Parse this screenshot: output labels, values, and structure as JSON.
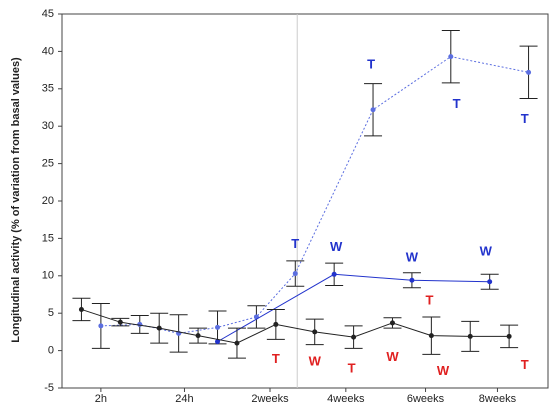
{
  "chart_data": {
    "type": "line",
    "y_label": "Longitudinal activity (% of variation from basal values)",
    "xlim": [
      0,
      25
    ],
    "ylim": [
      -5,
      45
    ],
    "yticks": [
      -5,
      0,
      5,
      10,
      15,
      20,
      25,
      30,
      35,
      40,
      45
    ],
    "xticks": [
      {
        "value": 2,
        "label": "2h"
      },
      {
        "value": 6.3,
        "label": "24h"
      },
      {
        "value": 10.7,
        "label": "2weeks"
      },
      {
        "value": 14.6,
        "label": "4weeks"
      },
      {
        "value": 18.7,
        "label": "6weeks"
      },
      {
        "value": 22.4,
        "label": "8weeks"
      }
    ],
    "vline": 12.1,
    "series": [
      {
        "color": "#5b6ee0",
        "dash": true,
        "x": [
          2,
          4,
          6,
          8,
          10,
          12,
          16,
          20,
          24
        ],
        "values": [
          3.3,
          3.5,
          2.3,
          3.1,
          4.5,
          10.3,
          32.2,
          39.3,
          37.2
        ],
        "errors": [
          3,
          1.2,
          2.5,
          2.2,
          1.5,
          1.7,
          3.5,
          3.5,
          3.5
        ]
      },
      {
        "color": "#2233cc",
        "dash": false,
        "x": [
          8,
          14,
          18,
          22
        ],
        "values": [
          1.2,
          10.2,
          9.4,
          9.2
        ],
        "errors": [
          null,
          1.5,
          1.0,
          1.0
        ]
      },
      {
        "color": "#222222",
        "dash": false,
        "x": [
          1,
          3,
          5,
          7,
          9,
          11,
          13,
          15,
          17,
          19,
          21,
          23
        ],
        "values": [
          5.5,
          3.8,
          3.0,
          2.0,
          1.0,
          3.5,
          2.5,
          1.8,
          3.7,
          2.0,
          1.9,
          1.9
        ],
        "errors": [
          1.5,
          0.5,
          2,
          1,
          2,
          2,
          1.7,
          1.5,
          0.7,
          2.5,
          2,
          1.5
        ]
      }
    ],
    "annotations": [
      {
        "text": "T",
        "x": 15.9,
        "y": 38.2,
        "color": "#2233cc"
      },
      {
        "text": "T",
        "x": 20.3,
        "y": 32.9,
        "color": "#2233cc"
      },
      {
        "text": "T",
        "x": 23.8,
        "y": 30.9,
        "color": "#2233cc"
      },
      {
        "text": "T",
        "x": 12.0,
        "y": 14.2,
        "color": "#2233cc"
      },
      {
        "text": "W",
        "x": 14.1,
        "y": 13.8,
        "color": "#2233cc"
      },
      {
        "text": "W",
        "x": 18.0,
        "y": 12.4,
        "color": "#2233cc"
      },
      {
        "text": "W",
        "x": 21.8,
        "y": 13.2,
        "color": "#2233cc"
      },
      {
        "text": "T",
        "x": 11.0,
        "y": -1.2,
        "color": "#e02020"
      },
      {
        "text": "W",
        "x": 13.0,
        "y": -1.5,
        "color": "#e02020"
      },
      {
        "text": "T",
        "x": 14.9,
        "y": -2.5,
        "color": "#e02020"
      },
      {
        "text": "W",
        "x": 17.0,
        "y": -0.9,
        "color": "#e02020"
      },
      {
        "text": "T",
        "x": 18.9,
        "y": 6.6,
        "color": "#e02020"
      },
      {
        "text": "W",
        "x": 19.6,
        "y": -2.8,
        "color": "#e02020"
      },
      {
        "text": "T",
        "x": 23.8,
        "y": -2.0,
        "color": "#e02020"
      }
    ]
  }
}
